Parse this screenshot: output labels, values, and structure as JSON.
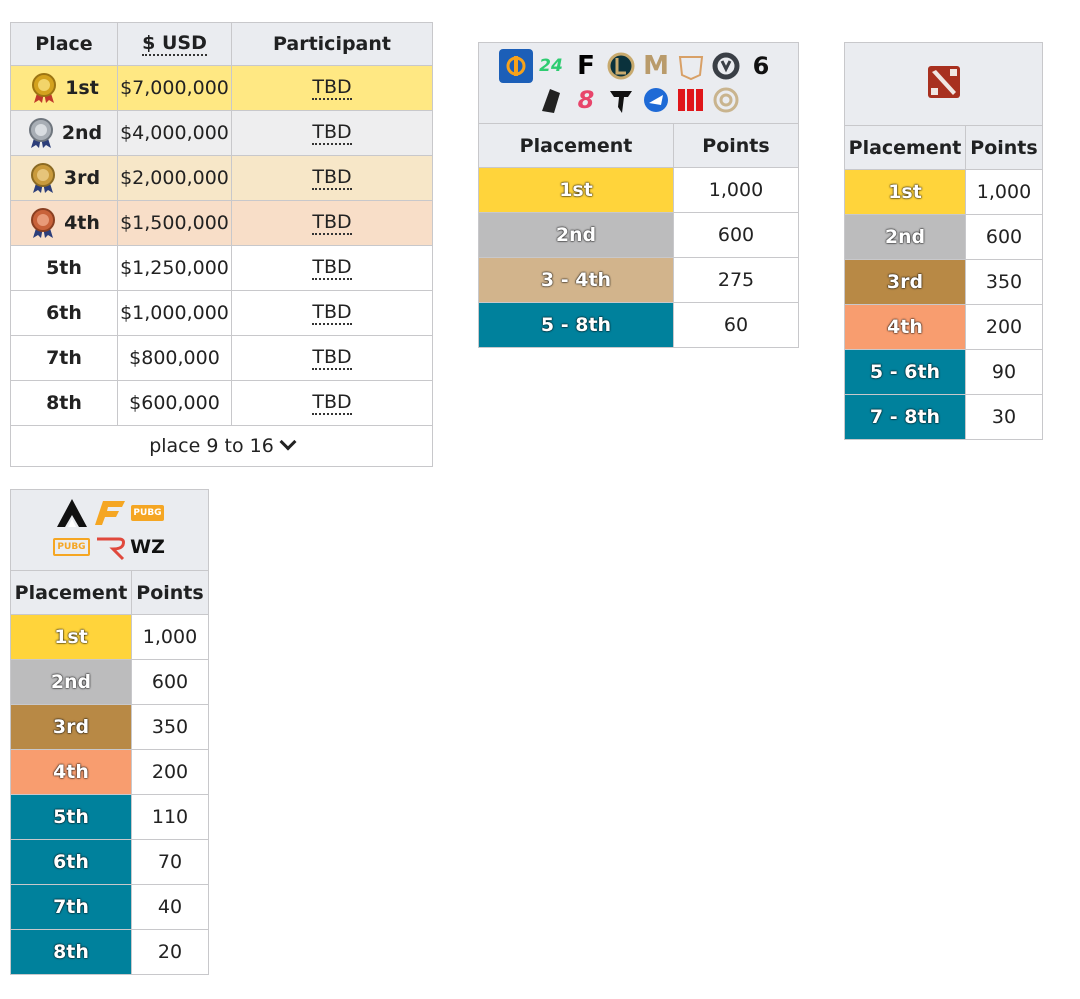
{
  "prize_table": {
    "headers": {
      "place": "Place",
      "usd": "$ USD",
      "participant": "Participant"
    },
    "rows": [
      {
        "place": "1st",
        "usd": "$7,000,000",
        "participant": "TBD"
      },
      {
        "place": "2nd",
        "usd": "$4,000,000",
        "participant": "TBD"
      },
      {
        "place": "3rd",
        "usd": "$2,000,000",
        "participant": "TBD"
      },
      {
        "place": "4th",
        "usd": "$1,500,000",
        "participant": "TBD"
      },
      {
        "place": "5th",
        "usd": "$1,250,000",
        "participant": "TBD"
      },
      {
        "place": "6th",
        "usd": "$1,000,000",
        "participant": "TBD"
      },
      {
        "place": "7th",
        "usd": "$800,000",
        "participant": "TBD"
      },
      {
        "place": "8th",
        "usd": "$600,000",
        "participant": "TBD"
      }
    ],
    "expand_label": "place 9 to 16"
  },
  "points_a": {
    "headers": {
      "placement": "Placement",
      "points": "Points"
    },
    "rows": [
      {
        "placement": "1st",
        "points": "1,000"
      },
      {
        "placement": "2nd",
        "points": "600"
      },
      {
        "placement": "3 - 4th",
        "points": "275"
      },
      {
        "placement": "5 - 8th",
        "points": "60"
      }
    ]
  },
  "points_b": {
    "headers": {
      "placement": "Placement",
      "points": "Points"
    },
    "rows": [
      {
        "placement": "1st",
        "points": "1,000"
      },
      {
        "placement": "2nd",
        "points": "600"
      },
      {
        "placement": "3rd",
        "points": "350"
      },
      {
        "placement": "4th",
        "points": "200"
      },
      {
        "placement": "5 - 6th",
        "points": "90"
      },
      {
        "placement": "7 - 8th",
        "points": "30"
      }
    ]
  },
  "points_c": {
    "headers": {
      "placement": "Placement",
      "points": "Points"
    },
    "rows": [
      {
        "placement": "1st",
        "points": "1,000"
      },
      {
        "placement": "2nd",
        "points": "600"
      },
      {
        "placement": "3rd",
        "points": "350"
      },
      {
        "placement": "4th",
        "points": "200"
      },
      {
        "placement": "5th",
        "points": "110"
      },
      {
        "placement": "6th",
        "points": "70"
      },
      {
        "placement": "7th",
        "points": "40"
      },
      {
        "placement": "8th",
        "points": "20"
      }
    ],
    "logo_texts": {
      "pubg": "PUBG",
      "pubg_mobile": "PUBG",
      "warzone": "WZ"
    }
  },
  "colors": {
    "gold": "#ffd43b",
    "silver": "#bcbcbd",
    "bronze": "#b88945",
    "fourth": "#f89d6f",
    "teal": "#00819c"
  }
}
